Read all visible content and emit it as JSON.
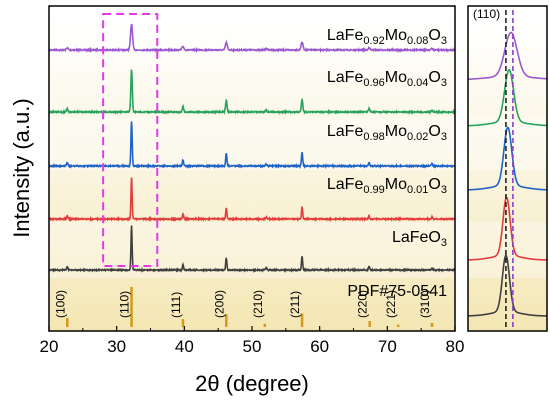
{
  "chart_data": {
    "type": "line",
    "xlabel": "2θ (degree)",
    "ylabel": "Intensity (a.u.)",
    "xlim": [
      20,
      80
    ],
    "xticks": [
      20,
      30,
      40,
      50,
      60,
      70,
      80
    ],
    "highlight_box": {
      "x_from": 28.0,
      "x_to": 36.0,
      "color": "#e23be6"
    },
    "peaks": [
      {
        "pos": 22.7,
        "h": 0.08
      },
      {
        "pos": 32.2,
        "h": 1.0
      },
      {
        "pos": 39.8,
        "h": 0.13
      },
      {
        "pos": 46.2,
        "h": 0.28
      },
      {
        "pos": 52.1,
        "h": 0.05
      },
      {
        "pos": 57.4,
        "h": 0.3
      },
      {
        "pos": 67.3,
        "h": 0.08
      },
      {
        "pos": 76.6,
        "h": 0.05
      }
    ],
    "series": [
      {
        "formula": [
          "LaFe",
          "0.92",
          "Mo",
          "0.08",
          "O",
          "3"
        ],
        "color": "#9b59d0",
        "peak_scale": 0.5,
        "width_scale": 1.7
      },
      {
        "formula": [
          "LaFe",
          "0.96",
          "Mo",
          "0.04",
          "O",
          "3"
        ],
        "color": "#27a35a",
        "peak_scale": 0.82,
        "width_scale": 1.25
      },
      {
        "formula": [
          "LaFe",
          "0.98",
          "Mo",
          "0.02",
          "O",
          "3"
        ],
        "color": "#1f63c8",
        "peak_scale": 0.85,
        "width_scale": 1.1
      },
      {
        "formula": [
          "LaFe",
          "0.99",
          "Mo",
          "0.01",
          "O",
          "3"
        ],
        "color": "#e23c3c",
        "peak_scale": 0.8,
        "width_scale": 1.0
      },
      {
        "formula": [
          "LaFeO",
          "3"
        ],
        "color": "#404040",
        "peak_scale": 0.85,
        "width_scale": 1.0
      }
    ],
    "reference": {
      "name": "PDF#75-0541",
      "color": "#d49a1a",
      "lines": [
        {
          "hkl": "(100)",
          "pos": 22.7,
          "h": 0.22
        },
        {
          "hkl": "(110)",
          "pos": 32.2,
          "h": 1.0
        },
        {
          "hkl": "(111)",
          "pos": 39.8,
          "h": 0.2
        },
        {
          "hkl": "(200)",
          "pos": 46.2,
          "h": 0.32
        },
        {
          "hkl": "(210)",
          "pos": 51.9,
          "h": 0.08
        },
        {
          "hkl": "(211)",
          "pos": 57.4,
          "h": 0.34
        },
        {
          "hkl": "(220)",
          "pos": 67.4,
          "h": 0.15
        },
        {
          "hkl": "(221)",
          "pos": 71.6,
          "h": 0.06
        },
        {
          "hkl": "(310)",
          "pos": 76.6,
          "h": 0.1
        }
      ]
    },
    "inset": {
      "title": "(110)",
      "xlim": [
        31.0,
        33.5
      ],
      "ref_position": 32.2,
      "shifted_position": 32.42,
      "ref_line_color": "#222222",
      "shifted_line_color": "#8a3fd0",
      "peak_centers": [
        32.36,
        32.3,
        32.26,
        32.22,
        32.2
      ]
    }
  }
}
